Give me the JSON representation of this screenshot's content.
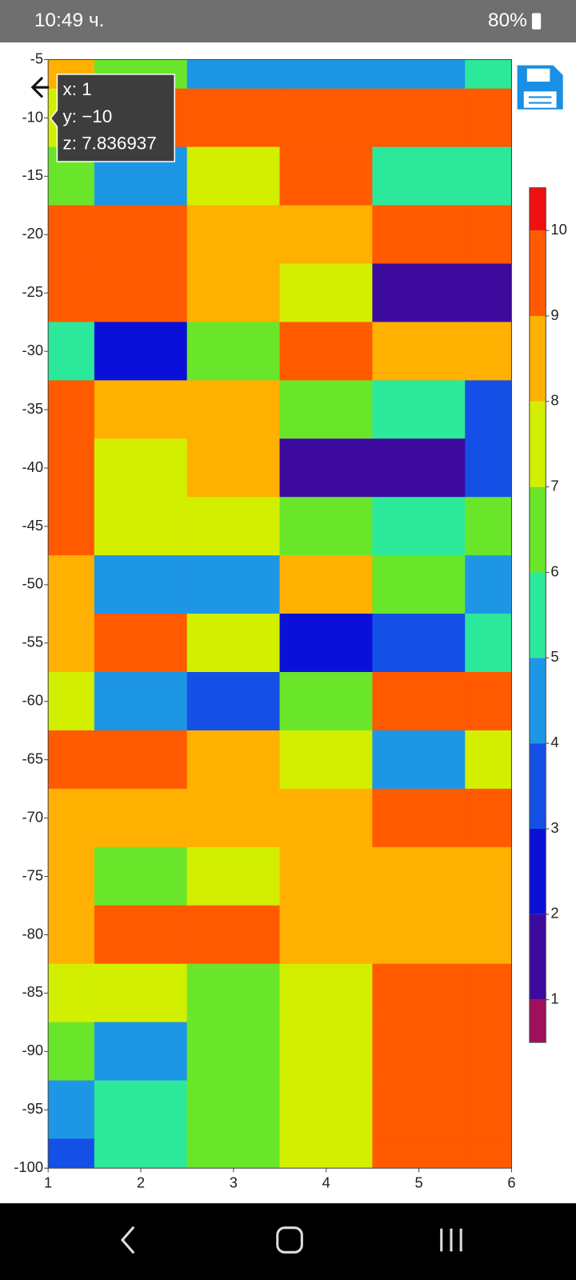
{
  "status_bar": {
    "time": "10:49 ч.",
    "battery": "80%"
  },
  "tooltip": [
    "x: 1",
    "y: −10",
    "z: 7.836937"
  ],
  "chart_data": {
    "type": "contour",
    "x": [
      1,
      2,
      3,
      4,
      5,
      6
    ],
    "y": [
      -5,
      -10,
      -15,
      -20,
      -25,
      -30,
      -35,
      -40,
      -45,
      -50,
      -55,
      -60,
      -65,
      -70,
      -75,
      -80,
      -85,
      -90,
      -95,
      -100
    ],
    "z": [
      [
        8.5,
        6,
        4,
        4,
        4.5,
        5
      ],
      [
        7.8,
        9,
        9.5,
        9.5,
        9.5,
        9.5
      ],
      [
        6.5,
        4.5,
        7.5,
        9.5,
        5.5,
        5.5
      ],
      [
        9.5,
        9.5,
        8.5,
        8.5,
        9,
        9.5
      ],
      [
        9,
        9,
        8.5,
        7,
        1.5,
        1.8
      ],
      [
        5,
        2,
        6,
        9.5,
        8.5,
        8
      ],
      [
        9.5,
        8.5,
        8.5,
        6.5,
        5,
        3.5
      ],
      [
        9.5,
        7.5,
        8,
        1.5,
        1.5,
        3
      ],
      [
        9,
        7.5,
        7.5,
        6,
        5.5,
        6
      ],
      [
        8,
        4.5,
        4,
        8.5,
        6.5,
        4
      ],
      [
        8.5,
        9.5,
        7,
        2.5,
        3.5,
        5
      ],
      [
        7.5,
        4.5,
        3.5,
        6.5,
        9,
        9.5
      ],
      [
        9.5,
        9.5,
        8.5,
        7,
        4.5,
        7.5
      ],
      [
        8.5,
        8.5,
        8.5,
        8.5,
        9.5,
        9.5
      ],
      [
        8.5,
        6.5,
        7.5,
        8,
        8,
        8.5
      ],
      [
        8.5,
        9.5,
        9.5,
        8,
        8,
        8.5
      ],
      [
        7.5,
        7.5,
        6,
        7.5,
        9.5,
        9.5
      ],
      [
        6.5,
        4.5,
        6.5,
        7.5,
        9.5,
        9.5
      ],
      [
        4.5,
        5.5,
        6.5,
        7.5,
        9.5,
        9.5
      ],
      [
        3,
        5,
        6.5,
        7.5,
        9.5,
        9.5
      ]
    ],
    "xlim": [
      1,
      6
    ],
    "xticks": [
      1,
      2,
      3,
      4,
      5,
      6
    ],
    "ylim": [
      -100,
      -5
    ],
    "yticks": [
      -5,
      -10,
      -15,
      -20,
      -25,
      -30,
      -35,
      -40,
      -45,
      -50,
      -55,
      -60,
      -65,
      -70,
      -75,
      -80,
      -85,
      -90,
      -95,
      -100
    ],
    "zlim": [
      0.5,
      10.5
    ],
    "zticks": [
      1,
      2,
      3,
      4,
      5,
      6,
      7,
      8,
      9,
      10
    ],
    "colors": [
      "#a0105a",
      "#3d0a9e",
      "#0a10d8",
      "#1450e6",
      "#1e96e6",
      "#2ce89a",
      "#6ae62a",
      "#d2ef00",
      "#ffb000",
      "#ff5a00",
      "#f01010"
    ]
  }
}
